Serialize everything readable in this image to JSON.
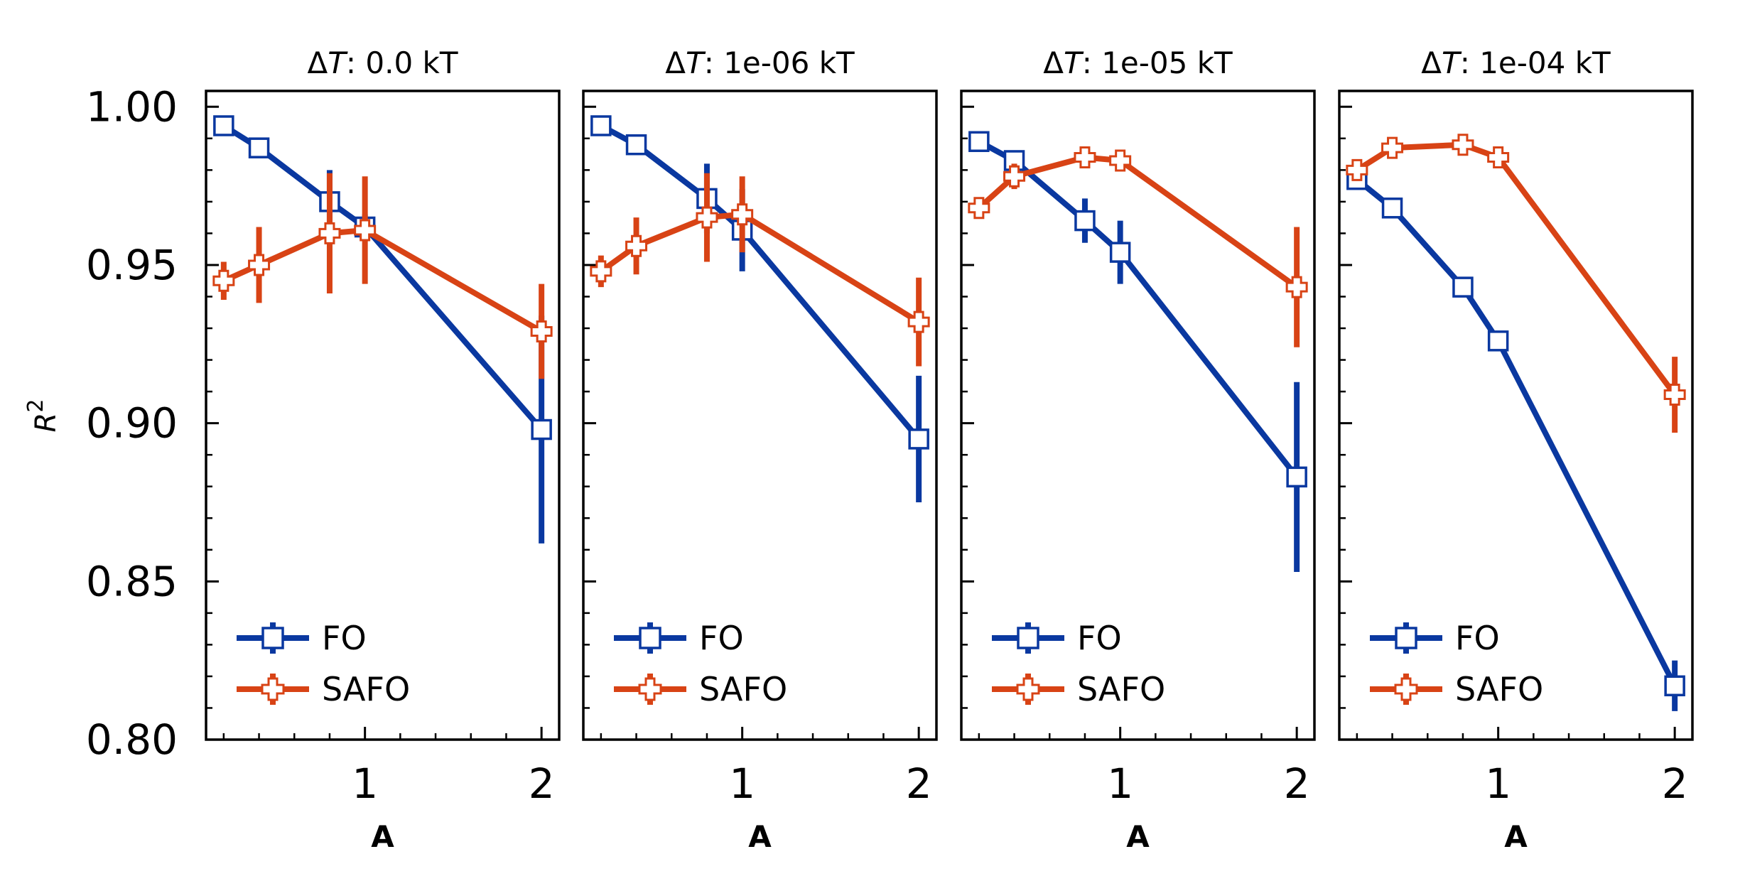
{
  "chart_data": [
    {
      "type": "line",
      "title_prefix": "ΔT",
      "title_suffix": ": 0.0 kT",
      "xlabel": "A",
      "ylabel": "R^2",
      "xlim": [
        0.1,
        2.1
      ],
      "ylim": [
        0.8,
        1.005
      ],
      "xticks": [
        1,
        2
      ],
      "yticks": [
        0.8,
        0.85,
        0.9,
        0.95,
        1.0
      ],
      "legend": "lower-left",
      "series": [
        {
          "name": "FO",
          "color": "#0a38a0",
          "marker": "square",
          "x": [
            0.2,
            0.4,
            0.8,
            1.0,
            2.0
          ],
          "y": [
            0.994,
            0.987,
            0.97,
            0.962,
            0.898
          ],
          "err": [
            0.002,
            0.002,
            0.01,
            0.004,
            0.036
          ]
        },
        {
          "name": "SAFO",
          "color": "#d84315",
          "marker": "plus",
          "x": [
            0.2,
            0.4,
            0.8,
            1.0,
            2.0
          ],
          "y": [
            0.945,
            0.95,
            0.96,
            0.961,
            0.929
          ],
          "err": [
            0.006,
            0.012,
            0.019,
            0.017,
            0.015
          ]
        }
      ]
    },
    {
      "type": "line",
      "title_prefix": "ΔT",
      "title_suffix": ": 1e-06 kT",
      "xlabel": "A",
      "ylabel": "",
      "xlim": [
        0.1,
        2.1
      ],
      "ylim": [
        0.8,
        1.005
      ],
      "xticks": [
        1,
        2
      ],
      "yticks": [
        0.8,
        0.85,
        0.9,
        0.95,
        1.0
      ],
      "legend": "lower-left",
      "series": [
        {
          "name": "FO",
          "color": "#0a38a0",
          "marker": "square",
          "x": [
            0.2,
            0.4,
            0.8,
            1.0,
            2.0
          ],
          "y": [
            0.994,
            0.988,
            0.971,
            0.961,
            0.895
          ],
          "err": [
            0.002,
            0.002,
            0.011,
            0.013,
            0.02
          ]
        },
        {
          "name": "SAFO",
          "color": "#d84315",
          "marker": "plus",
          "x": [
            0.2,
            0.4,
            0.8,
            1.0,
            2.0
          ],
          "y": [
            0.948,
            0.956,
            0.965,
            0.966,
            0.932
          ],
          "err": [
            0.005,
            0.009,
            0.014,
            0.012,
            0.014
          ]
        }
      ]
    },
    {
      "type": "line",
      "title_prefix": "ΔT",
      "title_suffix": ": 1e-05 kT",
      "xlabel": "A",
      "ylabel": "",
      "xlim": [
        0.1,
        2.1
      ],
      "ylim": [
        0.8,
        1.005
      ],
      "xticks": [
        1,
        2
      ],
      "yticks": [
        0.8,
        0.85,
        0.9,
        0.95,
        1.0
      ],
      "legend": "lower-left",
      "series": [
        {
          "name": "FO",
          "color": "#0a38a0",
          "marker": "square",
          "x": [
            0.2,
            0.4,
            0.8,
            1.0,
            2.0
          ],
          "y": [
            0.989,
            0.983,
            0.964,
            0.954,
            0.883
          ],
          "err": [
            0.002,
            0.003,
            0.007,
            0.01,
            0.03
          ]
        },
        {
          "name": "SAFO",
          "color": "#d84315",
          "marker": "plus",
          "x": [
            0.2,
            0.4,
            0.8,
            1.0,
            2.0
          ],
          "y": [
            0.968,
            0.978,
            0.984,
            0.983,
            0.943
          ],
          "err": [
            0.003,
            0.004,
            0.002,
            0.003,
            0.019
          ]
        }
      ]
    },
    {
      "type": "line",
      "title_prefix": "ΔT",
      "title_suffix": ": 1e-04 kT",
      "xlabel": "A",
      "ylabel": "",
      "xlim": [
        0.1,
        2.1
      ],
      "ylim": [
        0.8,
        1.005
      ],
      "xticks": [
        1,
        2
      ],
      "yticks": [
        0.8,
        0.85,
        0.9,
        0.95,
        1.0
      ],
      "legend": "lower-left",
      "series": [
        {
          "name": "FO",
          "color": "#0a38a0",
          "marker": "square",
          "x": [
            0.2,
            0.4,
            0.8,
            1.0,
            2.0
          ],
          "y": [
            0.977,
            0.968,
            0.943,
            0.926,
            0.817
          ],
          "err": [
            0.003,
            0.003,
            0.002,
            0.002,
            0.008
          ]
        },
        {
          "name": "SAFO",
          "color": "#d84315",
          "marker": "plus",
          "x": [
            0.2,
            0.4,
            0.8,
            1.0,
            2.0
          ],
          "y": [
            0.98,
            0.987,
            0.988,
            0.984,
            0.909
          ],
          "err": [
            0.003,
            0.002,
            0.002,
            0.002,
            0.012
          ]
        }
      ]
    }
  ]
}
